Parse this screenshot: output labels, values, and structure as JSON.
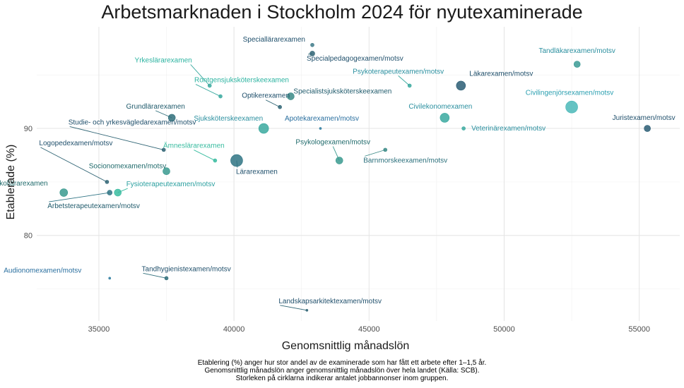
{
  "chart_data": {
    "type": "scatter",
    "title": "Arbetsmarknaden i Stockholm 2024 för nyutexaminerade",
    "xlabel": "Genomsnittlig månadslön",
    "ylabel": "Etablerade (%)",
    "xlim": [
      32700,
      56500
    ],
    "ylim": [
      72,
      99.5
    ],
    "xticks": [
      35000,
      40000,
      45000,
      50000,
      55000
    ],
    "yticks": [
      80,
      90
    ],
    "grid": true,
    "legend": "none",
    "caption": [
      "Etablering (%) anger hur stor andel av de examinerade som har fått ett arbete efter 1–1,5 år.",
      "Genomsnittlig månadslön anger genomsnittlig månadslön över hela landet (Källa: SCB).",
      "Storleken på cirklarna indikerar antalet jobbannonser inom gruppen."
    ],
    "points": [
      {
        "label": "Speciallärarexamen",
        "x": 42900,
        "y": 97.8,
        "r": 2.5,
        "color": "#3d7a88",
        "label_color": "#1f4f6b"
      },
      {
        "label": "Specialpedagogexamen/motsv",
        "x": 42900,
        "y": 97.0,
        "r": 3.5,
        "color": "#2f6474",
        "label_color": "#1f4f6b"
      },
      {
        "label": "Yrkeslärarexamen",
        "x": 39100,
        "y": 94.0,
        "r": 2.5,
        "color": "#3aa99f",
        "label_color": "#2bb3a0"
      },
      {
        "label": "Röntgensjuksköterskeexamen",
        "x": 39500,
        "y": 93.0,
        "r": 2.5,
        "color": "#3aa99f",
        "label_color": "#2bb3a0"
      },
      {
        "label": "Psykoterapeutexamen/motsv",
        "x": 46500,
        "y": 94.0,
        "r": 2.5,
        "color": "#3aa99f",
        "label_color": "#2a8f9f"
      },
      {
        "label": "Läkarexamen/motsv",
        "x": 48400,
        "y": 94.0,
        "r": 6.5,
        "color": "#2a5d74",
        "label_color": "#1f4f6b"
      },
      {
        "label": "Tandläkarexamen/motsv",
        "x": 52700,
        "y": 96.0,
        "r": 4.5,
        "color": "#3a9a94",
        "label_color": "#2a8f9f"
      },
      {
        "label": "Optikerexamen",
        "x": 41700,
        "y": 92.0,
        "r": 2.5,
        "color": "#2f6474",
        "label_color": "#1f4f6b"
      },
      {
        "label": "Specialistsjuksköterskeexamen",
        "x": 42100,
        "y": 93.0,
        "r": 5,
        "color": "#3a8a86",
        "label_color": "#1f5a6b"
      },
      {
        "label": "Grundlärarexamen",
        "x": 37700,
        "y": 91.0,
        "r": 5,
        "color": "#2f6e7a",
        "label_color": "#1f5a6b"
      },
      {
        "label": "Sjuksköterskeexamen",
        "x": 41100,
        "y": 90.0,
        "r": 7,
        "color": "#3aa99f",
        "label_color": "#2a8f9f"
      },
      {
        "label": "Civilekonomexamen",
        "x": 47800,
        "y": 91.0,
        "r": 6.5,
        "color": "#3aa9a0",
        "label_color": "#2a8f9f"
      },
      {
        "label": "Civilingenjörsexamen/motsv",
        "x": 52500,
        "y": 92.0,
        "r": 8.5,
        "color": "#4ab8b8",
        "label_color": "#2a9fb0"
      },
      {
        "label": "Juristexamen/motsv",
        "x": 55300,
        "y": 90.0,
        "r": 4.5,
        "color": "#2a5d74",
        "label_color": "#1f4f6b"
      },
      {
        "label": "Apotekarexamen/motsv",
        "x": 43200,
        "y": 90.0,
        "r": 1.5,
        "color": "#2f7da0",
        "label_color": "#2a6f9f"
      },
      {
        "label": "Veterinärexamen/motsv",
        "x": 48500,
        "y": 90.0,
        "r": 2.5,
        "color": "#3aa99f",
        "label_color": "#2a8f9f"
      },
      {
        "label": "Studie- och yrkesvägledarexamen/motsv",
        "x": 37400,
        "y": 88.0,
        "r": 2.5,
        "color": "#2f6474",
        "label_color": "#1f4f6b"
      },
      {
        "label": "Ämneslärarexamen",
        "x": 39300,
        "y": 87.0,
        "r": 2.5,
        "color": "#3abca0",
        "label_color": "#3abca0"
      },
      {
        "label": "Lärarexamen",
        "x": 40100,
        "y": 87.0,
        "r": 8.5,
        "color": "#2f7484",
        "label_color": "#1f4f6b"
      },
      {
        "label": "Psykologexamen/motsv",
        "x": 43900,
        "y": 87.0,
        "r": 5,
        "color": "#3a9a8f",
        "label_color": "#1f6a6b"
      },
      {
        "label": "Barnmorskeexamen/motsv",
        "x": 45600,
        "y": 88.0,
        "r": 2.5,
        "color": "#3a8a86",
        "label_color": "#2a6f7b"
      },
      {
        "label": "Logopedexamen/motsv",
        "x": 35300,
        "y": 85.0,
        "r": 2.5,
        "color": "#2f6474",
        "label_color": "#1f4f6b"
      },
      {
        "label": "Socionomexamen/motsv",
        "x": 37500,
        "y": 86.0,
        "r": 5,
        "color": "#3a9a8f",
        "label_color": "#1f6a6b"
      },
      {
        "label": "Förskollärarexamen",
        "x": 33700,
        "y": 84.0,
        "r": 5.5,
        "color": "#3a9a8f",
        "label_color": "#1f6a6b"
      },
      {
        "label": "Fysioterapeutexamen/motsv",
        "x": 35700,
        "y": 84.0,
        "r": 5,
        "color": "#3abca0",
        "label_color": "#2a9f9f"
      },
      {
        "label": "Arbetsterapeutexamen/motsv",
        "x": 35400,
        "y": 84.0,
        "r": 3.5,
        "color": "#2f7484",
        "label_color": "#1f5a6b"
      },
      {
        "label": "Audionomexamen/motsv",
        "x": 35400,
        "y": 76.0,
        "r": 1.5,
        "color": "#2f7da0",
        "label_color": "#2a6f9f"
      },
      {
        "label": "Tandhygienistexamen/motsv",
        "x": 37500,
        "y": 76.0,
        "r": 2.5,
        "color": "#2f6e7a",
        "label_color": "#1f4f6b"
      },
      {
        "label": "Landskapsarkitektexamen/motsv",
        "x": 42700,
        "y": 73.0,
        "r": 1.5,
        "color": "#2f6474",
        "label_color": "#1f4f6b"
      }
    ]
  }
}
